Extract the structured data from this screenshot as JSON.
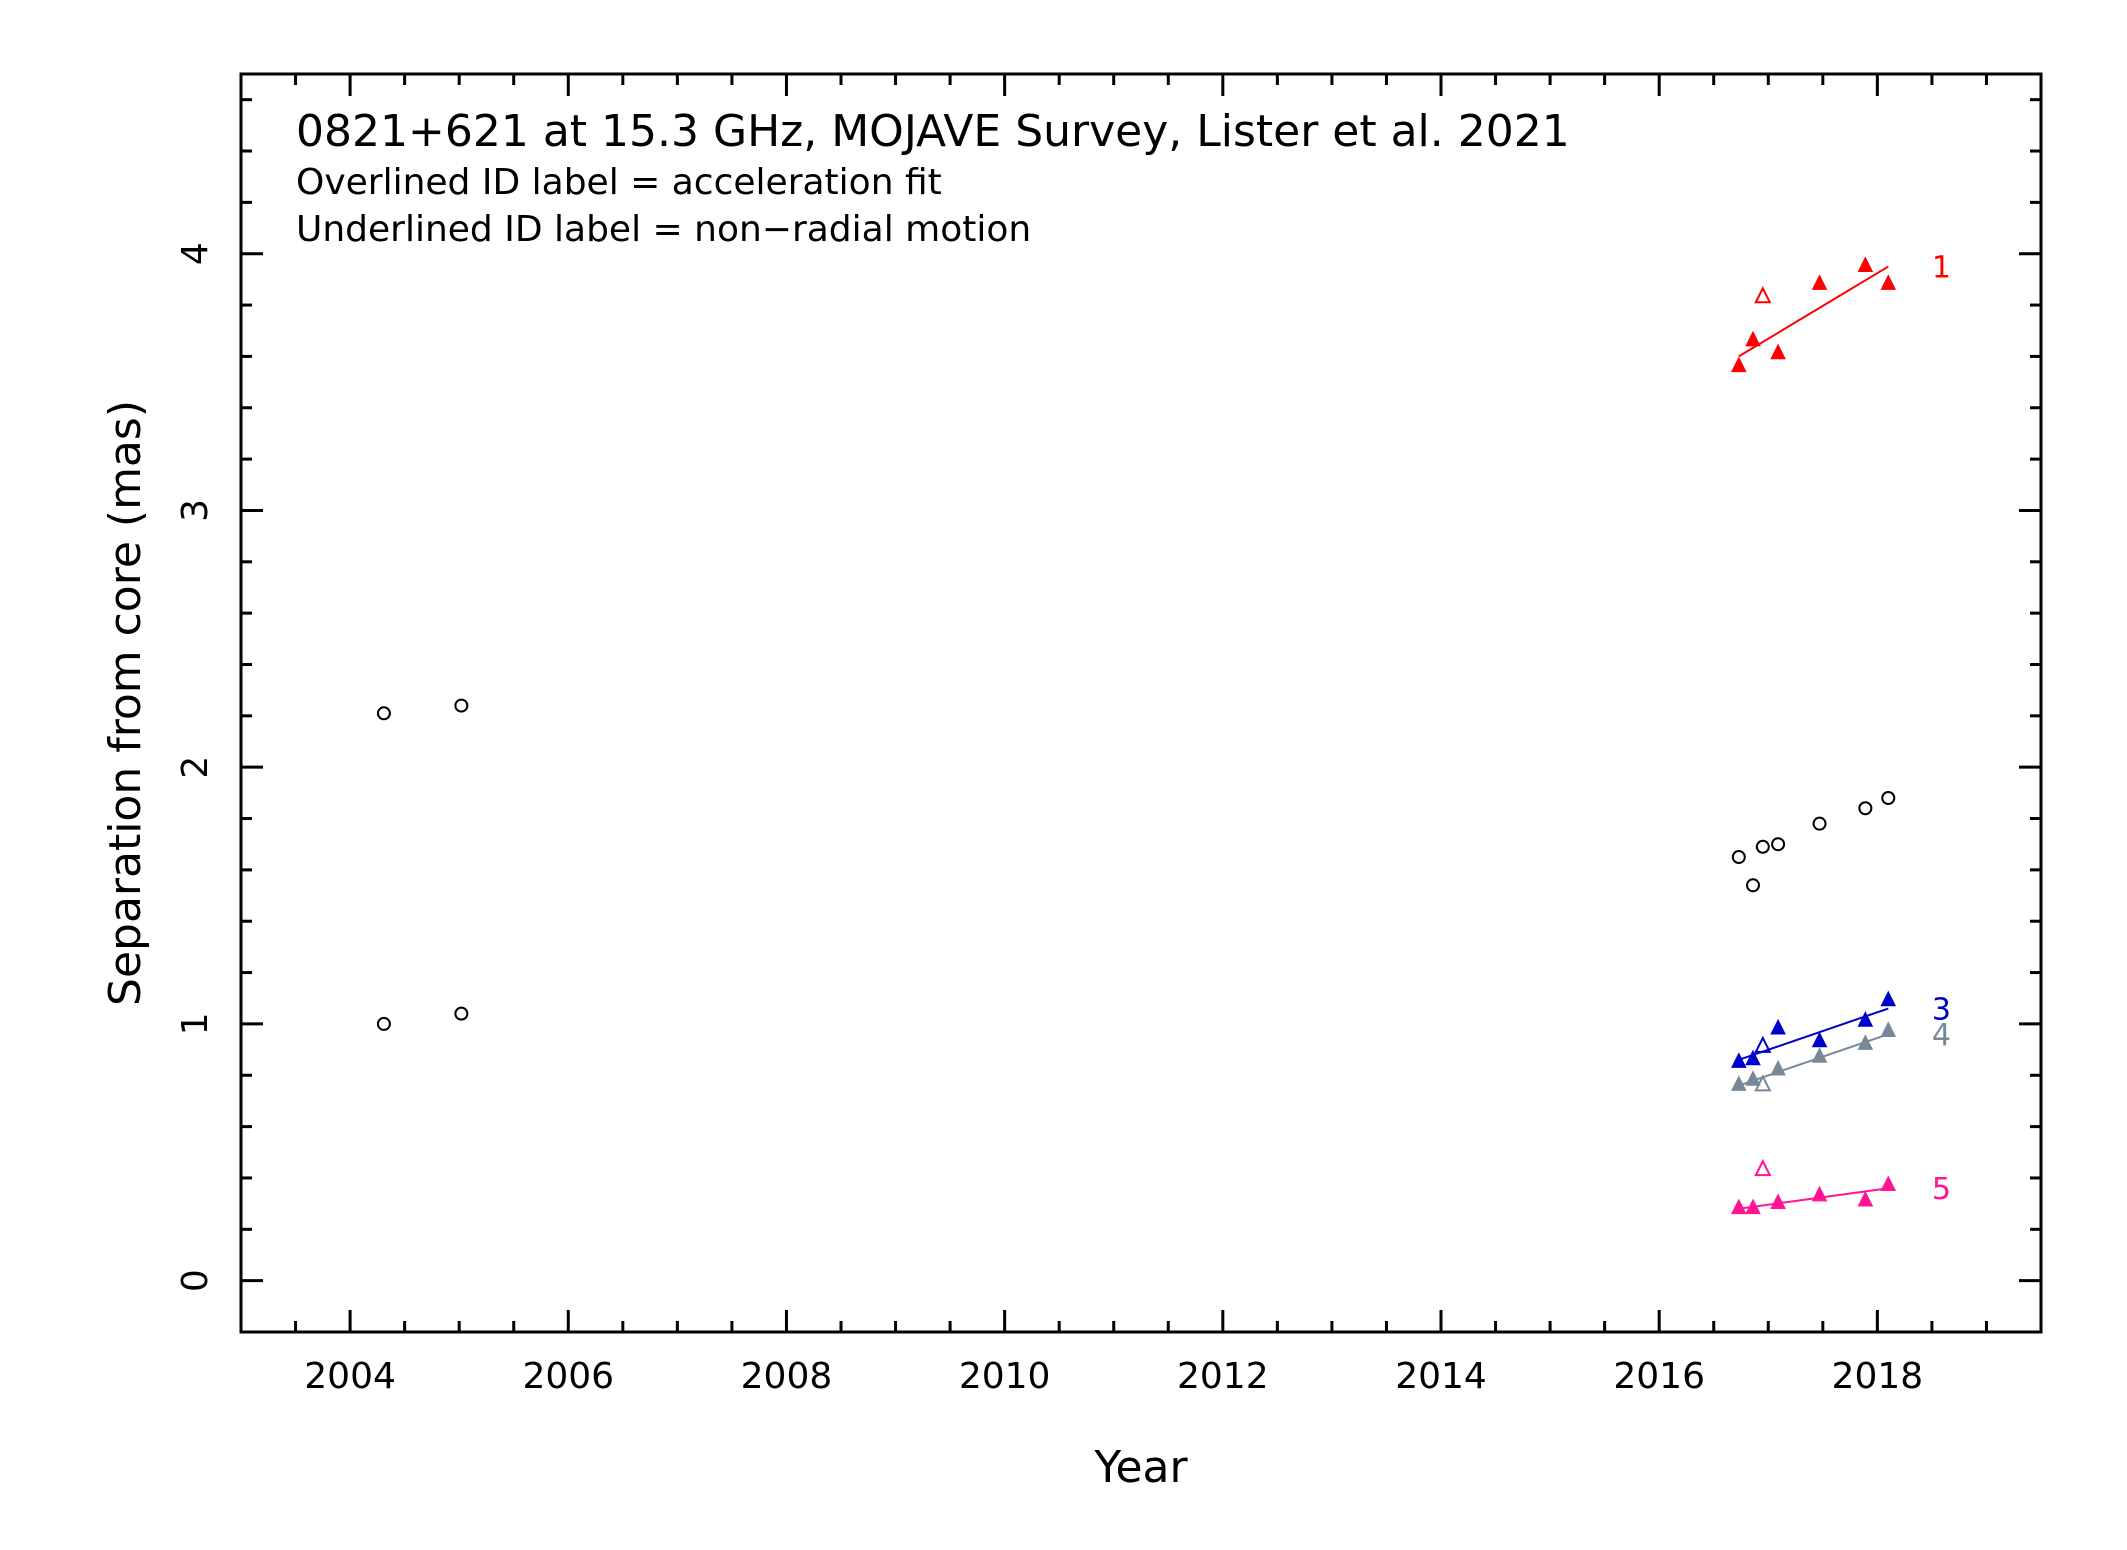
{
  "chart_data": {
    "type": "scatter",
    "title": "0821+621 at 15.3 GHz, MOJAVE Survey, Lister et al. 2021",
    "subtitle_lines": [
      "Overlined ID label = acceleration fit",
      "Underlined ID label = non−radial motion"
    ],
    "xlabel": "Year",
    "ylabel": "Separation from core (mas)",
    "xlim": [
      2003.0,
      2019.5
    ],
    "ylim": [
      -0.2,
      4.7
    ],
    "x_ticks": [
      2004,
      2006,
      2008,
      2010,
      2012,
      2014,
      2016,
      2018
    ],
    "y_ticks": [
      0,
      1,
      2,
      3,
      4
    ],
    "grid": false,
    "unassigned_points": {
      "marker": "open-circle",
      "color": "#000000",
      "x": [
        2004.31,
        2004.31,
        2005.02,
        2005.02,
        2016.73,
        2016.86,
        2016.95,
        2017.09,
        2017.47,
        2017.89,
        2018.1
      ],
      "y": [
        2.21,
        1.0,
        2.24,
        1.04,
        1.65,
        1.54,
        1.69,
        1.7,
        1.78,
        1.84,
        1.88
      ]
    },
    "series": [
      {
        "name": "1",
        "color": "#ff0000",
        "x": [
          2016.73,
          2016.86,
          2016.95,
          2017.09,
          2017.47,
          2017.89,
          2018.1
        ],
        "y": [
          3.56,
          3.66,
          3.83,
          3.61,
          3.88,
          3.95,
          3.88
        ],
        "open": [
          false,
          false,
          true,
          false,
          false,
          false,
          false
        ],
        "fit": {
          "x": [
            2016.73,
            2018.1
          ],
          "y": [
            3.6,
            3.95
          ]
        }
      },
      {
        "name": "3",
        "color": "#0000cc",
        "x": [
          2016.73,
          2016.86,
          2016.95,
          2017.09,
          2017.47,
          2017.89,
          2018.1
        ],
        "y": [
          0.85,
          0.86,
          0.91,
          0.98,
          0.93,
          1.01,
          1.09
        ],
        "open": [
          false,
          false,
          true,
          false,
          false,
          false,
          false
        ],
        "fit": {
          "x": [
            2016.73,
            2018.1
          ],
          "y": [
            0.86,
            1.06
          ]
        }
      },
      {
        "name": "4",
        "color": "#778899",
        "x": [
          2016.73,
          2016.86,
          2016.95,
          2017.09,
          2017.47,
          2017.89,
          2018.1
        ],
        "y": [
          0.76,
          0.78,
          0.76,
          0.82,
          0.87,
          0.92,
          0.97
        ],
        "open": [
          false,
          false,
          true,
          false,
          false,
          false,
          false
        ],
        "fit": {
          "x": [
            2016.73,
            2018.1
          ],
          "y": [
            0.76,
            0.96
          ]
        }
      },
      {
        "name": "5",
        "color": "#ff1493",
        "x": [
          2016.73,
          2016.86,
          2016.95,
          2017.09,
          2017.47,
          2017.89,
          2018.1
        ],
        "y": [
          0.28,
          0.28,
          0.43,
          0.3,
          0.33,
          0.31,
          0.37
        ],
        "open": [
          false,
          false,
          true,
          false,
          false,
          false,
          false
        ],
        "fit": {
          "x": [
            2016.73,
            2018.1
          ],
          "y": [
            0.28,
            0.36
          ]
        }
      }
    ]
  }
}
